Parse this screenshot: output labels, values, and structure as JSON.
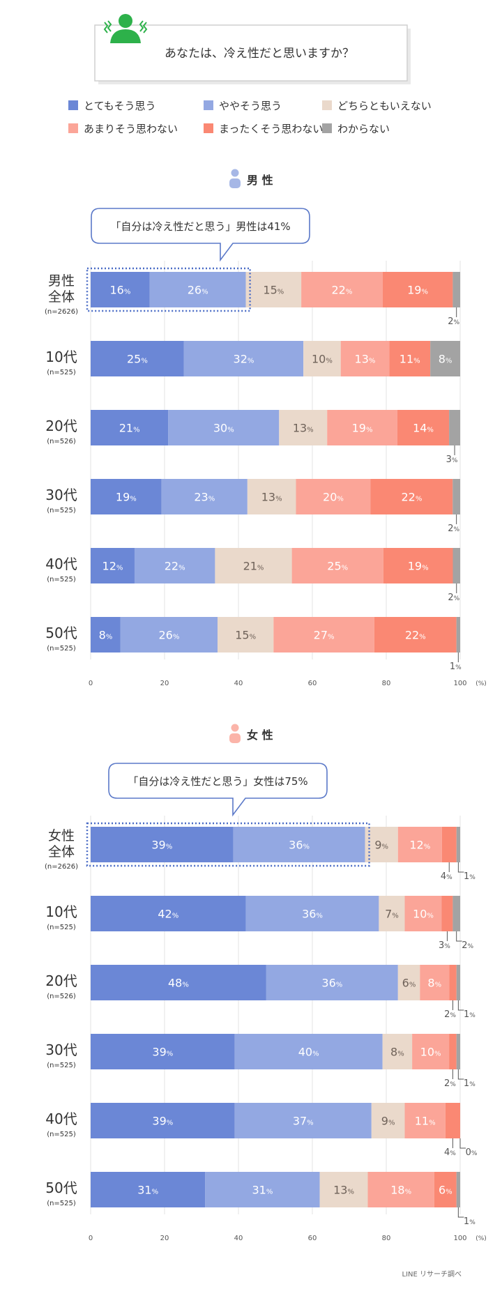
{
  "question": "あなたは、冷え性だと思いますか？",
  "unit_suffix": "%",
  "axis_unit": "(%)",
  "source": "LINE リサーチ調べ",
  "colors": [
    "#6b87d6",
    "#93a8e2",
    "#ead9cb",
    "#fba598",
    "#fa8873",
    "#a3a3a3"
  ],
  "icon_color": "#2db14a",
  "chart_data": {
    "type": "bar",
    "orientation": "horizontal",
    "stacked": true,
    "xlim": [
      0,
      100
    ],
    "xticks": [
      "0",
      "20",
      "40",
      "60",
      "80",
      "100"
    ],
    "legend": [
      "とてもそう思う",
      "ややそう思う",
      "どちらともいえない",
      "あまりそう思わない",
      "まったくそう思わない",
      "わからない"
    ],
    "panels": [
      {
        "title": "男 性",
        "callout": "「自分は冷え性だと思う」男性は41%",
        "rows": [
          {
            "label": [
              "男性",
              "全体"
            ],
            "n": "(n=2626)",
            "values": [
              16,
              26,
              15,
              22,
              19,
              2
            ]
          },
          {
            "label": [
              "10代"
            ],
            "n": "(n=525)",
            "values": [
              25,
              32,
              10,
              13,
              11,
              8
            ]
          },
          {
            "label": [
              "20代"
            ],
            "n": "(n=526)",
            "values": [
              21,
              30,
              13,
              19,
              14,
              3
            ]
          },
          {
            "label": [
              "30代"
            ],
            "n": "(n=525)",
            "values": [
              19,
              23,
              13,
              20,
              22,
              2
            ]
          },
          {
            "label": [
              "40代"
            ],
            "n": "(n=525)",
            "values": [
              12,
              22,
              21,
              25,
              19,
              2
            ]
          },
          {
            "label": [
              "50代"
            ],
            "n": "(n=525)",
            "values": [
              8,
              26,
              15,
              27,
              22,
              1
            ]
          }
        ]
      },
      {
        "title": "女 性",
        "callout": "「自分は冷え性だと思う」女性は75%",
        "rows": [
          {
            "label": [
              "女性",
              "全体"
            ],
            "n": "(n=2626)",
            "values": [
              39,
              36,
              9,
              12,
              4,
              1
            ]
          },
          {
            "label": [
              "10代"
            ],
            "n": "(n=525)",
            "values": [
              42,
              36,
              7,
              10,
              3,
              2
            ]
          },
          {
            "label": [
              "20代"
            ],
            "n": "(n=526)",
            "values": [
              48,
              36,
              6,
              8,
              2,
              1
            ]
          },
          {
            "label": [
              "30代"
            ],
            "n": "(n=525)",
            "values": [
              39,
              40,
              8,
              10,
              2,
              1
            ]
          },
          {
            "label": [
              "40代"
            ],
            "n": "(n=525)",
            "values": [
              39,
              37,
              9,
              11,
              4,
              0
            ]
          },
          {
            "label": [
              "50代"
            ],
            "n": "(n=525)",
            "values": [
              31,
              31,
              13,
              18,
              6,
              1
            ]
          }
        ]
      }
    ]
  }
}
